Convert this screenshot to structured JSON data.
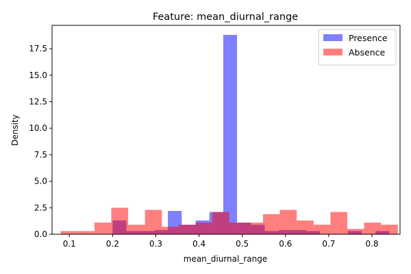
{
  "chart_data": {
    "type": "bar",
    "subtype": "overlapping-histogram",
    "title": "Feature: mean_diurnal_range",
    "xlabel": "mean_diurnal_range",
    "ylabel": "Density",
    "xlim": [
      0.06,
      0.865
    ],
    "ylim": [
      0,
      19.7
    ],
    "x_ticks": [
      0.1,
      0.2,
      0.3,
      0.4,
      0.5,
      0.6,
      0.7,
      0.8
    ],
    "x_tick_labels": [
      "0.1",
      "0.2",
      "0.3",
      "0.4",
      "0.5",
      "0.6",
      "0.7",
      "0.8"
    ],
    "y_ticks": [
      0.0,
      2.5,
      5.0,
      7.5,
      10.0,
      12.5,
      15.0,
      17.5
    ],
    "y_tick_labels": [
      "0.0",
      "2.5",
      "5.0",
      "7.5",
      "10.0",
      "12.5",
      "15.0",
      "17.5"
    ],
    "grid": false,
    "legend_position": "top-right",
    "series": [
      {
        "name": "Presence",
        "color": "#0000ff",
        "alpha": 0.5,
        "bin_edges": [
          0.2,
          0.232,
          0.264,
          0.296,
          0.328,
          0.36,
          0.392,
          0.424,
          0.456,
          0.488,
          0.52,
          0.552,
          0.584,
          0.616,
          0.648,
          0.68,
          0.712,
          0.744,
          0.776,
          0.808,
          0.84
        ],
        "values": [
          1.3,
          0.3,
          0.3,
          0.4,
          2.2,
          0.9,
          1.3,
          2.1,
          18.8,
          1.1,
          0.9,
          0.3,
          0.4,
          0.4,
          0.3,
          0.0,
          0.0,
          0.3,
          0.0,
          0.3
        ]
      },
      {
        "name": "Absence",
        "color": "#ff0000",
        "alpha": 0.5,
        "bin_edges": [
          0.08,
          0.119,
          0.158,
          0.197,
          0.236,
          0.275,
          0.314,
          0.353,
          0.392,
          0.431,
          0.47,
          0.509,
          0.548,
          0.587,
          0.626,
          0.665,
          0.704,
          0.743,
          0.782,
          0.821,
          0.86
        ],
        "values": [
          0.3,
          0.3,
          1.1,
          2.5,
          0.9,
          2.3,
          0.7,
          0.9,
          1.1,
          2.1,
          1.1,
          1.1,
          1.9,
          2.3,
          1.3,
          0.9,
          2.1,
          0.5,
          1.1,
          0.9
        ]
      }
    ]
  }
}
